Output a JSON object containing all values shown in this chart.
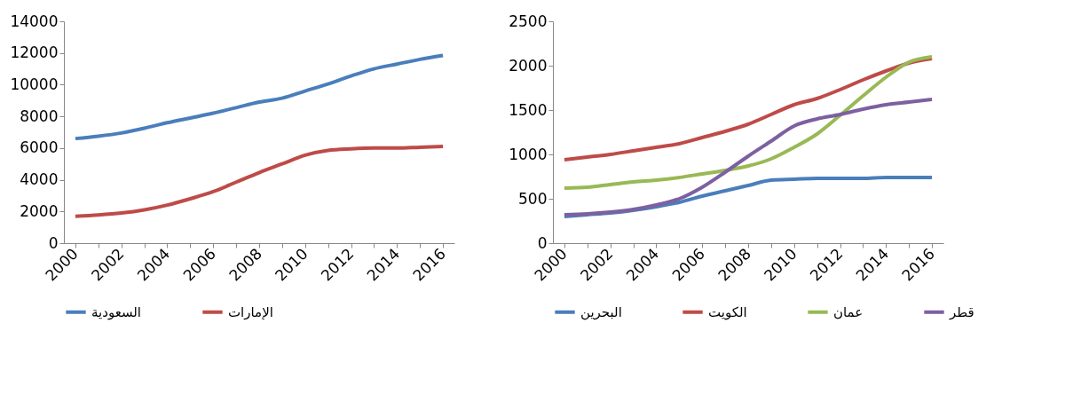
{
  "chart_data": [
    {
      "type": "line",
      "categories": [
        "2000",
        null,
        "2002",
        null,
        "2004",
        null,
        "2006",
        null,
        "2008",
        null,
        "2010",
        null,
        "2012",
        null,
        "2014",
        null,
        "2016"
      ],
      "series": [
        {
          "name": "السعودية",
          "color": "#4a7ebb",
          "values": [
            6600,
            6750,
            6950,
            7250,
            7600,
            7900,
            8200,
            8550,
            8900,
            9150,
            9600,
            10050,
            10550,
            11000,
            11300,
            11600,
            11850
          ]
        },
        {
          "name": "الإمارات",
          "color": "#be4b48",
          "values": [
            1700,
            1780,
            1900,
            2100,
            2400,
            2800,
            3250,
            3850,
            4450,
            5000,
            5550,
            5850,
            5950,
            6000,
            6000,
            6050,
            6100
          ]
        }
      ],
      "ylim": [
        0,
        14000
      ],
      "yticks": [
        0,
        2000,
        4000,
        6000,
        8000,
        10000,
        12000,
        14000
      ],
      "legend": "bottom",
      "grid": false
    },
    {
      "type": "line",
      "categories": [
        "2000",
        null,
        "2002",
        null,
        "2004",
        null,
        "2006",
        null,
        "2008",
        null,
        "2010",
        null,
        "2012",
        null,
        "2014",
        null,
        "2016"
      ],
      "series": [
        {
          "name": "البحرين",
          "color": "#4a7ebb",
          "values": [
            300,
            320,
            340,
            370,
            410,
            460,
            530,
            590,
            650,
            710,
            720,
            730,
            730,
            730,
            740,
            740,
            740
          ]
        },
        {
          "name": "الكويت",
          "color": "#be4b48",
          "values": [
            940,
            970,
            1000,
            1040,
            1080,
            1120,
            1190,
            1260,
            1340,
            1450,
            1560,
            1630,
            1730,
            1840,
            1940,
            2030,
            2080
          ]
        },
        {
          "name": "عمان",
          "color": "#98b954",
          "values": [
            620,
            630,
            660,
            690,
            710,
            740,
            780,
            820,
            870,
            950,
            1080,
            1230,
            1440,
            1660,
            1870,
            2040,
            2100
          ]
        },
        {
          "name": "قطر",
          "color": "#7d60a0",
          "values": [
            320,
            330,
            350,
            380,
            430,
            500,
            630,
            800,
            980,
            1150,
            1320,
            1400,
            1450,
            1510,
            1560,
            1590,
            1620
          ]
        }
      ],
      "ylim": [
        0,
        2500
      ],
      "yticks": [
        0,
        500,
        1000,
        1500,
        2000,
        2500
      ],
      "legend": "bottom",
      "grid": false
    }
  ]
}
